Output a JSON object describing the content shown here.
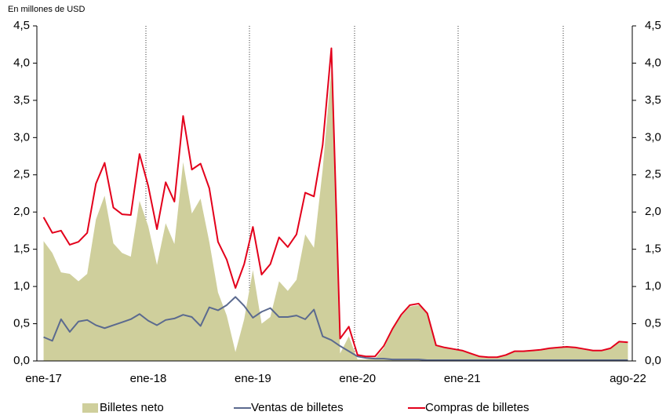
{
  "chart_data": {
    "type": "line",
    "axis_label": "En millones de USD",
    "categories": [
      "ene-17",
      null,
      null,
      null,
      null,
      null,
      null,
      null,
      null,
      null,
      null,
      null,
      "ene-18",
      null,
      null,
      null,
      null,
      null,
      null,
      null,
      null,
      null,
      null,
      null,
      "ene-19",
      null,
      null,
      null,
      null,
      null,
      null,
      null,
      null,
      null,
      null,
      null,
      "ene-20",
      null,
      null,
      null,
      null,
      null,
      null,
      null,
      null,
      null,
      null,
      null,
      "ene-21",
      null,
      null,
      null,
      null,
      null,
      null,
      null,
      null,
      null,
      null,
      null,
      null,
      null,
      null,
      null,
      null,
      null,
      null,
      "ago-22"
    ],
    "series": [
      {
        "name": "Billetes neto",
        "type": "area",
        "color": "#cfcf9c",
        "values": [
          1.61,
          1.45,
          1.19,
          1.17,
          1.07,
          1.17,
          1.9,
          2.22,
          1.58,
          1.45,
          1.4,
          2.15,
          1.81,
          1.29,
          1.85,
          1.57,
          2.67,
          1.98,
          2.18,
          1.6,
          0.92,
          0.61,
          0.12,
          0.56,
          1.22,
          0.5,
          0.59,
          1.07,
          0.94,
          1.09,
          1.7,
          1.52,
          2.57,
          3.92,
          0.1,
          0.33,
          0.02,
          0.02,
          0.03,
          0.17,
          0.41,
          0.6,
          0.73,
          0.75,
          0.63,
          0.2,
          0.17,
          0.15,
          0.13,
          0.09,
          0.05,
          0.04,
          0.04,
          0.07,
          0.12,
          0.12,
          0.13,
          0.14,
          0.16,
          0.17,
          0.18,
          0.17,
          0.15,
          0.13,
          0.13,
          0.16,
          0.25,
          0.24
        ]
      },
      {
        "name": "Ventas de billetes",
        "type": "line",
        "color": "#5b6a8f",
        "values": [
          0.32,
          0.27,
          0.56,
          0.39,
          0.53,
          0.55,
          0.48,
          0.44,
          0.48,
          0.52,
          0.56,
          0.63,
          0.54,
          0.48,
          0.55,
          0.57,
          0.62,
          0.59,
          0.47,
          0.72,
          0.68,
          0.75,
          0.86,
          0.74,
          0.58,
          0.66,
          0.71,
          0.59,
          0.59,
          0.61,
          0.56,
          0.69,
          0.33,
          0.28,
          0.2,
          0.13,
          0.06,
          0.04,
          0.03,
          0.03,
          0.02,
          0.02,
          0.02,
          0.02,
          0.01,
          0.01,
          0.01,
          0.01,
          0.01,
          0.01,
          0.01,
          0.01,
          0.01,
          0.01,
          0.01,
          0.01,
          0.01,
          0.01,
          0.01,
          0.01,
          0.01,
          0.01,
          0.01,
          0.01,
          0.01,
          0.01,
          0.01,
          0.01
        ]
      },
      {
        "name": "Compras de billetes",
        "type": "line",
        "color": "#e3001b",
        "values": [
          1.93,
          1.72,
          1.75,
          1.56,
          1.6,
          1.72,
          2.38,
          2.66,
          2.06,
          1.97,
          1.96,
          2.78,
          2.35,
          1.77,
          2.4,
          2.14,
          3.29,
          2.57,
          2.65,
          2.32,
          1.6,
          1.36,
          0.98,
          1.3,
          1.8,
          1.16,
          1.3,
          1.66,
          1.53,
          1.7,
          2.26,
          2.21,
          2.9,
          4.2,
          0.3,
          0.46,
          0.08,
          0.06,
          0.06,
          0.2,
          0.43,
          0.62,
          0.75,
          0.77,
          0.64,
          0.21,
          0.18,
          0.16,
          0.14,
          0.1,
          0.06,
          0.05,
          0.05,
          0.08,
          0.13,
          0.13,
          0.14,
          0.15,
          0.17,
          0.18,
          0.19,
          0.18,
          0.16,
          0.14,
          0.14,
          0.17,
          0.26,
          0.25
        ]
      }
    ],
    "ylim": [
      0,
      4.5
    ],
    "yticks": [
      {
        "value": 0,
        "label": "0,0"
      },
      {
        "value": 0.5,
        "label": "0,5"
      },
      {
        "value": 1,
        "label": "1,0"
      },
      {
        "value": 1.5,
        "label": "1,5"
      },
      {
        "value": 2,
        "label": "2,0"
      },
      {
        "value": 2.5,
        "label": "2,5"
      },
      {
        "value": 3,
        "label": "3,0"
      },
      {
        "value": 3.5,
        "label": "3,5"
      },
      {
        "value": 4,
        "label": "4,0"
      },
      {
        "value": 4.5,
        "label": "4,5"
      }
    ],
    "y2lim": [
      0,
      4.5
    ],
    "y2ticks": [
      {
        "value": 0,
        "label": "0,0"
      },
      {
        "value": 0.5,
        "label": "0,5"
      },
      {
        "value": 1,
        "label": "1,0"
      },
      {
        "value": 1.5,
        "label": "1,5"
      },
      {
        "value": 2,
        "label": "2,0"
      },
      {
        "value": 2.5,
        "label": "2,5"
      },
      {
        "value": 3,
        "label": "3,0"
      },
      {
        "value": 3.5,
        "label": "3,5"
      },
      {
        "value": 4,
        "label": "4,0"
      },
      {
        "value": 4.5,
        "label": "4,5"
      }
    ],
    "legend": "bottom"
  }
}
